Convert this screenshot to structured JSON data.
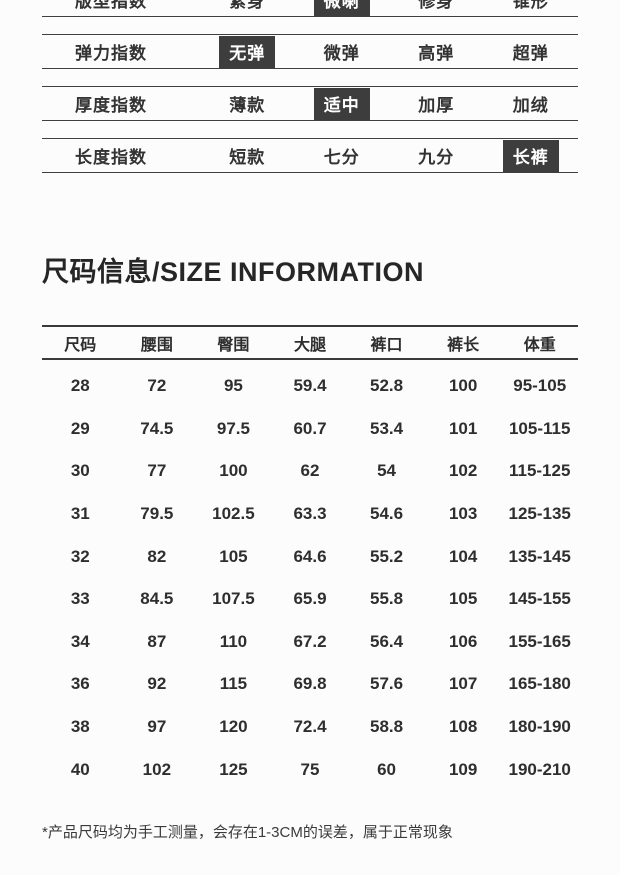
{
  "colors": {
    "background": "#fcfcfc",
    "text": "#333333",
    "badge_background": "#3d3d3d",
    "badge_text": "#ffffff",
    "line": "#3f3f3f"
  },
  "attributes": {
    "rows": [
      {
        "label": "版型指数",
        "options": [
          "紧身",
          "微喇",
          "修身",
          "锥形"
        ],
        "selected": "微喇",
        "selected_index": 1
      },
      {
        "label": "弹力指数",
        "options": [
          "无弹",
          "微弹",
          "高弹",
          "超弹"
        ],
        "selected": "无弹",
        "selected_index": 0
      },
      {
        "label": "厚度指数",
        "options": [
          "薄款",
          "适中",
          "加厚",
          "加绒"
        ],
        "selected": "适中",
        "selected_index": 1
      },
      {
        "label": "长度指数",
        "options": [
          "短款",
          "七分",
          "九分",
          "长裤"
        ],
        "selected": "长裤",
        "selected_index": 3
      }
    ]
  },
  "size_section": {
    "title": "尺码信息/SIZE INFORMATION",
    "footnote": "*产品尺码均为手工测量，会存在1-3CM的误差，属于正常现象"
  },
  "size_table": {
    "headers": [
      "尺码",
      "腰围",
      "臀围",
      "大腿",
      "裤口",
      "裤长",
      "体重"
    ],
    "rows": [
      [
        "28",
        "72",
        "95",
        "59.4",
        "52.8",
        "100",
        "95-105"
      ],
      [
        "29",
        "74.5",
        "97.5",
        "60.7",
        "53.4",
        "101",
        "105-115"
      ],
      [
        "30",
        "77",
        "100",
        "62",
        "54",
        "102",
        "115-125"
      ],
      [
        "31",
        "79.5",
        "102.5",
        "63.3",
        "54.6",
        "103",
        "125-135"
      ],
      [
        "32",
        "82",
        "105",
        "64.6",
        "55.2",
        "104",
        "135-145"
      ],
      [
        "33",
        "84.5",
        "107.5",
        "65.9",
        "55.8",
        "105",
        "145-155"
      ],
      [
        "34",
        "87",
        "110",
        "67.2",
        "56.4",
        "106",
        "155-165"
      ],
      [
        "36",
        "92",
        "115",
        "69.8",
        "57.6",
        "107",
        "165-180"
      ],
      [
        "38",
        "97",
        "120",
        "72.4",
        "58.8",
        "108",
        "180-190"
      ],
      [
        "40",
        "102",
        "125",
        "75",
        "60",
        "109",
        "190-210"
      ]
    ]
  }
}
